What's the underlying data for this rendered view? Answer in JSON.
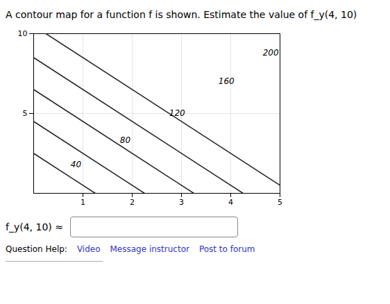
{
  "chart_data": {
    "type": "contour",
    "title": "A contour map for a function f is shown. Estimate the value of f_y(4, 10)",
    "xlim": [
      0,
      5
    ],
    "ylim": [
      0,
      10
    ],
    "xticks": [
      1,
      2,
      3,
      4,
      5
    ],
    "yticks": [
      5,
      10
    ],
    "grid": true,
    "color": "#222222",
    "contours": [
      {
        "value": 40,
        "x": [
          1.25,
          0
        ],
        "y": [
          0,
          2.5
        ],
        "label_x": 0.75,
        "label_y": 1.8
      },
      {
        "value": 80,
        "x": [
          2.25,
          0
        ],
        "y": [
          0,
          4.5
        ],
        "label_x": 1.75,
        "label_y": 3.3
      },
      {
        "value": 120,
        "x": [
          3.25,
          0
        ],
        "y": [
          0,
          6.5
        ],
        "label_x": 2.75,
        "label_y": 5.0
      },
      {
        "value": 160,
        "x": [
          4.25,
          0
        ],
        "y": [
          0,
          8.5
        ],
        "label_x": 3.75,
        "label_y": 7.0
      },
      {
        "value": 200,
        "x": [
          5,
          0.25
        ],
        "y": [
          0.5,
          10
        ],
        "label_x": 4.65,
        "label_y": 8.8
      }
    ],
    "annotations": [
      "f_y(4, 10) ≈",
      "Question Help:",
      "Video",
      "Message instructor",
      "Post to forum"
    ]
  }
}
